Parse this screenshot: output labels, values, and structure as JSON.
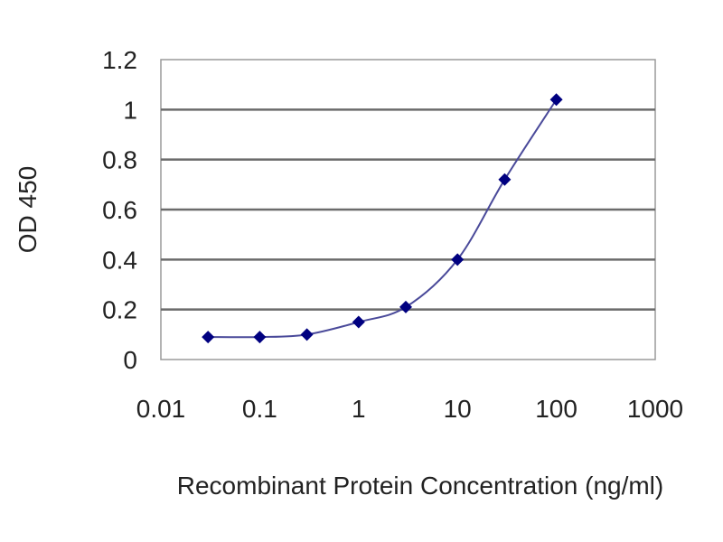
{
  "chart_data": {
    "type": "scatter",
    "xlabel": "Recombinant Protein Concentration (ng/ml)",
    "ylabel": "OD 450",
    "x_scale": "log",
    "xlim": [
      0.01,
      1000
    ],
    "ylim": [
      0,
      1.2
    ],
    "x_ticks": [
      "0.01",
      "0.1",
      "1",
      "10",
      "100",
      "1000"
    ],
    "y_ticks": [
      "0",
      "0.2",
      "0.4",
      "0.6",
      "0.8",
      "1",
      "1.2"
    ],
    "grid": "horizontal",
    "legend": "none",
    "series": [
      {
        "x": [
          0.03,
          0.1,
          0.3,
          1,
          3,
          10,
          30,
          100
        ],
        "y": [
          0.09,
          0.09,
          0.1,
          0.15,
          0.21,
          0.4,
          0.72,
          1.04
        ],
        "color": "#000080",
        "line_color": "#4a4a9a",
        "marker": "diamond",
        "smooth": true
      }
    ],
    "plot_background": "#ffffff",
    "grid_color": "#6b6b6b"
  }
}
